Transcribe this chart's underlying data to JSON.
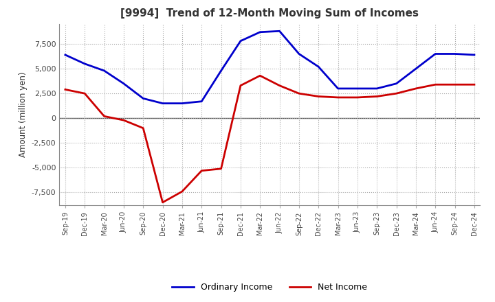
{
  "title": "[9994]  Trend of 12-Month Moving Sum of Incomes",
  "ylabel": "Amount (million yen)",
  "ylim": [
    -8800,
    9500
  ],
  "yticks": [
    -7500,
    -5000,
    -2500,
    0,
    2500,
    5000,
    7500
  ],
  "x_labels": [
    "Sep-19",
    "Dec-19",
    "Mar-20",
    "Jun-20",
    "Sep-20",
    "Dec-20",
    "Mar-21",
    "Jun-21",
    "Sep-21",
    "Dec-21",
    "Mar-22",
    "Jun-22",
    "Sep-22",
    "Dec-22",
    "Mar-23",
    "Jun-23",
    "Sep-23",
    "Dec-23",
    "Mar-24",
    "Jun-24",
    "Sep-24",
    "Dec-24"
  ],
  "ordinary_income": [
    6400,
    5500,
    4800,
    3500,
    2000,
    1500,
    1500,
    1700,
    4800,
    7800,
    8700,
    8800,
    6500,
    5200,
    3000,
    3000,
    3000,
    3500,
    5000,
    6500,
    6500,
    6400
  ],
  "net_income": [
    2900,
    2500,
    200,
    -200,
    -1000,
    -8500,
    -7400,
    -5300,
    -5100,
    3300,
    4300,
    3300,
    2500,
    2200,
    2100,
    2100,
    2200,
    2500,
    3000,
    3400,
    3400,
    3400
  ],
  "ordinary_color": "#0000cc",
  "net_color": "#cc0000",
  "background_color": "#ffffff",
  "grid_color": "#aaaaaa",
  "title_color": "#333333",
  "zero_line_color": "#555555",
  "legend_labels": [
    "Ordinary Income",
    "Net Income"
  ]
}
